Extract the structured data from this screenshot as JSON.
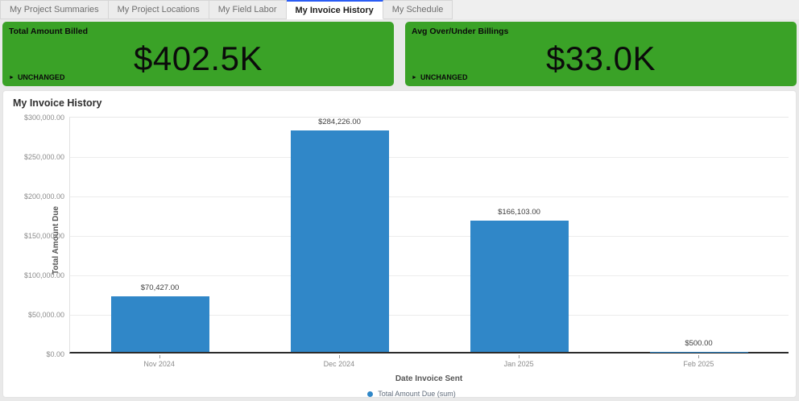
{
  "colors": {
    "accent_blue": "#2a5cf4",
    "kpi_green": "#3aa227",
    "bar_blue": "#3087c8"
  },
  "tab_bar": {
    "tabs": [
      {
        "label": "My Project Summaries",
        "active": false
      },
      {
        "label": "My Project Locations",
        "active": false
      },
      {
        "label": "My Field Labor",
        "active": false
      },
      {
        "label": "My Invoice History",
        "active": true
      },
      {
        "label": "My Schedule",
        "active": false
      }
    ]
  },
  "kpi_cards": [
    {
      "title": "Total Amount Billed",
      "value": "$402.5K",
      "status": "UNCHANGED",
      "status_icon": "play-arrow",
      "color": "#3aa227"
    },
    {
      "title": "Avg Over/Under Billings",
      "value": "$33.0K",
      "status": "UNCHANGED",
      "status_icon": "play-arrow",
      "color": "#3aa227"
    }
  ],
  "chart": {
    "title": "My Invoice History"
  },
  "chart_data": {
    "type": "bar",
    "title": "My Invoice History",
    "categories": [
      "Nov 2024",
      "Dec 2024",
      "Jan 2025",
      "Feb 2025"
    ],
    "values": [
      70427,
      284226,
      166103,
      500
    ],
    "value_labels": [
      "$70,427.00",
      "$284,226.00",
      "$166,103.00",
      "$500.00"
    ],
    "xlabel": "Date Invoice Sent",
    "ylabel": "Total Amount Due",
    "ylim": [
      0,
      300000
    ],
    "ytick_labels": [
      "$300,000.00",
      "$250,000.00",
      "$200,000.00",
      "$150,000.00",
      "$100,000.00",
      "$50,000.00",
      "$0.00"
    ],
    "grid": true,
    "bar_color": "#3087c8",
    "legend_position": "bottom",
    "legend": [
      {
        "label": "Total Amount Due (sum)",
        "color": "#3087c8"
      }
    ]
  }
}
